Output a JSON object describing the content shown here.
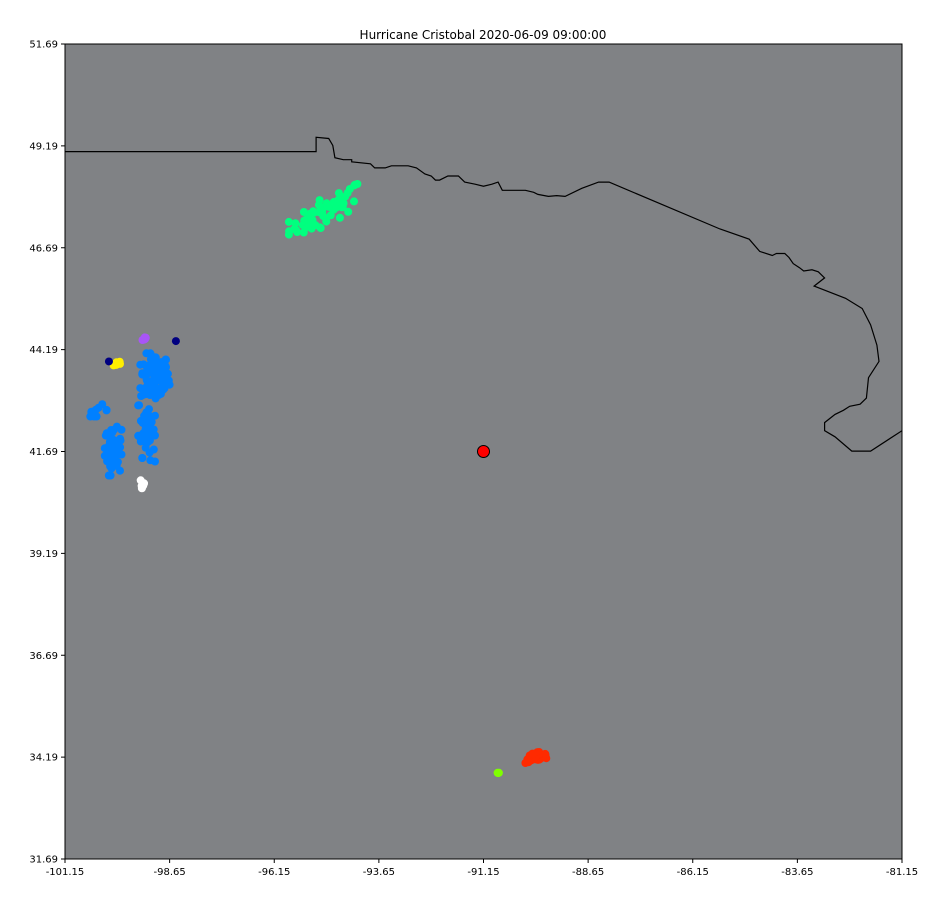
{
  "chart_data": {
    "type": "scatter",
    "title": "Hurricane Cristobal 2020-06-09 09:00:00",
    "xlabel": "",
    "ylabel": "",
    "xlim": [
      -101.15,
      -81.15
    ],
    "ylim": [
      31.69,
      51.69
    ],
    "x_ticks": [
      "-101.15",
      "-98.65",
      "-96.15",
      "-93.65",
      "-91.15",
      "-88.65",
      "-86.15",
      "-83.65",
      "-81.15"
    ],
    "y_ticks": [
      "31.69",
      "34.19",
      "36.69",
      "39.19",
      "41.69",
      "44.19",
      "46.69",
      "49.19",
      "51.69"
    ],
    "grid": false,
    "background_color": "#808285",
    "boundary_color": "#000000",
    "storm_center": {
      "x": -91.15,
      "y": 41.69,
      "color": "#ff0000",
      "edge": "#000000"
    },
    "clusters": [
      {
        "color": "#00ff7f",
        "center": [
          -94.9,
          47.6
        ],
        "spread": [
          0.9,
          0.35
        ],
        "count": 60,
        "tilt": 0.55
      },
      {
        "color": "#0080ff",
        "center": [
          -99.0,
          43.5
        ],
        "spread": [
          0.35,
          0.6
        ],
        "count": 110,
        "tilt": 0.0
      },
      {
        "color": "#0080ff",
        "center": [
          -99.2,
          42.3
        ],
        "spread": [
          0.2,
          0.8
        ],
        "count": 50,
        "tilt": -0.3
      },
      {
        "color": "#0080ff",
        "center": [
          -100.0,
          41.7
        ],
        "spread": [
          0.2,
          0.6
        ],
        "count": 60,
        "tilt": 0.0
      },
      {
        "color": "#0080ff",
        "center": [
          -100.4,
          42.7
        ],
        "spread": [
          0.3,
          0.15
        ],
        "count": 10,
        "tilt": 0.0
      },
      {
        "color": "#ff2a00",
        "center": [
          -89.9,
          34.2
        ],
        "spread": [
          0.25,
          0.1
        ],
        "count": 40,
        "tilt": 0.25
      },
      {
        "color": "#ffee00",
        "center": [
          -99.9,
          43.85
        ],
        "spread": [
          0.12,
          0.08
        ],
        "count": 6,
        "tilt": 0.0
      },
      {
        "color": "#a855f7",
        "center": [
          -99.25,
          44.45
        ],
        "spread": [
          0.06,
          0.08
        ],
        "count": 6,
        "tilt": 0.0
      },
      {
        "color": "#ffffff",
        "center": [
          -99.3,
          40.9
        ],
        "spread": [
          0.06,
          0.2
        ],
        "count": 8,
        "tilt": 0.0
      },
      {
        "color": "#7fff00",
        "center": [
          -90.8,
          33.8
        ],
        "spread": [
          0.05,
          0.03
        ],
        "count": 4,
        "tilt": 0.0
      }
    ],
    "points": [
      {
        "x": -100.1,
        "y": 43.9,
        "color": "#000080"
      },
      {
        "x": -98.5,
        "y": 44.4,
        "color": "#000080"
      }
    ],
    "coastline": [
      [
        -101.15,
        49.05
      ],
      [
        -95.15,
        49.05
      ],
      [
        -95.15,
        49.4
      ],
      [
        -94.85,
        49.37
      ],
      [
        -94.75,
        49.2
      ],
      [
        -94.7,
        48.9
      ],
      [
        -94.5,
        48.85
      ],
      [
        -94.3,
        48.85
      ],
      [
        -94.3,
        48.8
      ],
      [
        -93.85,
        48.75
      ],
      [
        -93.75,
        48.65
      ],
      [
        -93.5,
        48.65
      ],
      [
        -93.35,
        48.7
      ],
      [
        -92.95,
        48.7
      ],
      [
        -92.75,
        48.65
      ],
      [
        -92.55,
        48.5
      ],
      [
        -92.4,
        48.45
      ],
      [
        -92.3,
        48.35
      ],
      [
        -92.2,
        48.35
      ],
      [
        -92.0,
        48.45
      ],
      [
        -91.75,
        48.45
      ],
      [
        -91.6,
        48.3
      ],
      [
        -91.35,
        48.25
      ],
      [
        -91.15,
        48.2
      ],
      [
        -90.95,
        48.25
      ],
      [
        -90.8,
        48.3
      ],
      [
        -90.7,
        48.1
      ],
      [
        -90.15,
        48.1
      ],
      [
        -89.95,
        48.05
      ],
      [
        -89.85,
        48.0
      ],
      [
        -89.6,
        47.95
      ],
      [
        -89.4,
        47.97
      ],
      [
        -89.2,
        47.95
      ],
      [
        -88.8,
        48.15
      ],
      [
        -88.4,
        48.3
      ],
      [
        -88.15,
        48.3
      ],
      [
        -85.5,
        47.15
      ],
      [
        -84.8,
        46.9
      ],
      [
        -84.55,
        46.6
      ],
      [
        -84.25,
        46.5
      ],
      [
        -84.15,
        46.55
      ],
      [
        -83.95,
        46.55
      ],
      [
        -83.85,
        46.45
      ],
      [
        -83.75,
        46.3
      ],
      [
        -83.6,
        46.2
      ],
      [
        -83.5,
        46.12
      ],
      [
        -83.3,
        46.15
      ],
      [
        -83.15,
        46.1
      ],
      [
        -83.0,
        45.95
      ],
      [
        -83.25,
        45.75
      ],
      [
        -82.5,
        45.45
      ],
      [
        -82.1,
        45.2
      ],
      [
        -81.9,
        44.8
      ],
      [
        -81.75,
        44.3
      ],
      [
        -81.7,
        43.9
      ],
      [
        -81.95,
        43.5
      ],
      [
        -82.0,
        43.0
      ],
      [
        -82.15,
        42.85
      ],
      [
        -82.4,
        42.8
      ],
      [
        -82.55,
        42.7
      ],
      [
        -82.75,
        42.6
      ],
      [
        -83.0,
        42.4
      ],
      [
        -83.0,
        42.2
      ],
      [
        -82.75,
        42.05
      ],
      [
        -82.35,
        41.7
      ],
      [
        -81.9,
        41.7
      ],
      [
        -81.15,
        42.2
      ]
    ]
  }
}
